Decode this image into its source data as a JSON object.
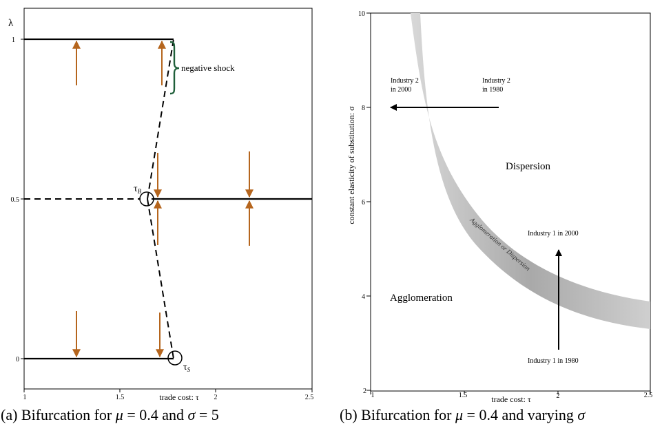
{
  "panel_a": {
    "y_label": "λ",
    "x_label": "trade cost: τ",
    "x_ticks": [
      "1",
      "1.5",
      "2",
      "2.5"
    ],
    "y_ticks": [
      "1",
      "0.5",
      "0"
    ],
    "point_tau_b": "τ",
    "point_tau_b_sub": "B",
    "point_tau_s": "τ",
    "point_tau_s_sub": "S",
    "shock_label": "negative shock",
    "caption_prefix": "(a) Bifurcation for ",
    "caption_mu": "μ",
    "caption_mid": " = 0.4 and ",
    "caption_sigma": "σ",
    "caption_end": " = 5"
  },
  "panel_b": {
    "y_label": "constant elasticity of substitution: σ",
    "x_label": "trade cost: τ",
    "x_ticks": [
      "1",
      "1.5",
      "2",
      "2.5"
    ],
    "y_ticks": [
      "10",
      "8",
      "6",
      "4",
      "2"
    ],
    "region_dispersion": "Dispersion",
    "region_agglomeration": "Agglomeration",
    "band_label": "Agglomeration or Dispersion",
    "industry2_2000_line1": "Industry 2",
    "industry2_2000_line2": "in 2000",
    "industry2_1980_line1": "Industry 2",
    "industry2_1980_line2": "in 1980",
    "industry1_2000": "Industry 1 in 2000",
    "industry1_1980": "Industry 1 in 1980",
    "caption_prefix": "(b) Bifurcation for ",
    "caption_mu": "μ",
    "caption_mid": " = 0.4 and varying ",
    "caption_sigma": "σ"
  },
  "colors": {
    "arrow_orange": "#b5651d",
    "brace_green": "#1f5f3a",
    "band_gray": "#bbbbbb"
  }
}
